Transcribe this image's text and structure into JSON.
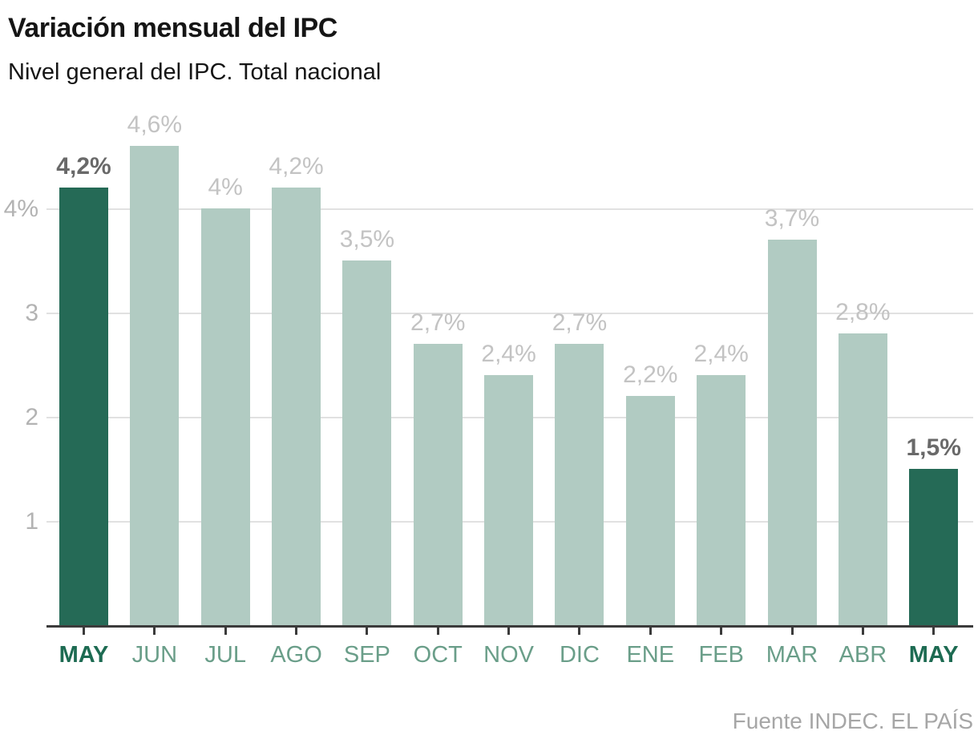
{
  "chart_data": {
    "type": "bar",
    "title": "Variación mensual del IPC",
    "subtitle": "Nivel general del IPC. Total nacional",
    "source": "Fuente INDEC. EL PAÍS",
    "categories": [
      "MAY",
      "JUN",
      "JUL",
      "AGO",
      "SEP",
      "OCT",
      "NOV",
      "DIC",
      "ENE",
      "FEB",
      "MAR",
      "ABR",
      "MAY"
    ],
    "values": [
      4.2,
      4.6,
      4.0,
      4.2,
      3.5,
      2.7,
      2.4,
      2.7,
      2.2,
      2.4,
      3.7,
      2.8,
      1.5
    ],
    "value_labels": [
      "4,2%",
      "4,6%",
      "4%",
      "4,2%",
      "3,5%",
      "2,7%",
      "2,4%",
      "2,7%",
      "2,2%",
      "2,4%",
      "3,7%",
      "2,8%",
      "1,5%"
    ],
    "highlighted_indices": [
      0,
      12
    ],
    "xlabel": "",
    "ylabel": "",
    "ylim": [
      0,
      4.8
    ],
    "yticks": [
      1,
      2,
      3,
      4
    ],
    "ytick_labels": [
      "1",
      "2",
      "3",
      "4%"
    ],
    "grid": true,
    "legend": "none",
    "colors": {
      "title": "#151515",
      "bar": "#b1cbc2",
      "bar_highlight": "#256a56",
      "value_label": "#c3c3c3",
      "value_label_highlight": "#696969",
      "month_label": "#6a9e89",
      "month_label_highlight": "#1d6b52",
      "ytick_label": "#b3b3b3",
      "gridline": "#e1e1e1",
      "axis": "#3b3b3b",
      "source_text": "#a6a6a6"
    }
  }
}
